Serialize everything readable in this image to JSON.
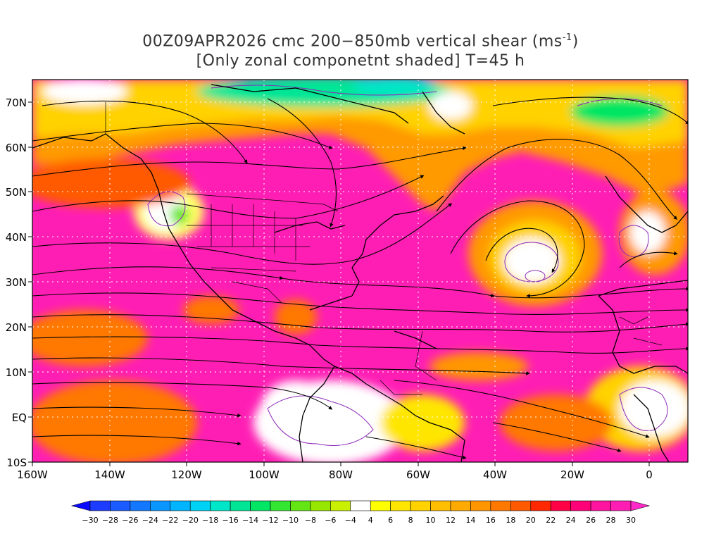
{
  "title": {
    "line1": "00Z09APR2026 cmc 200−850mb vertical shear (ms",
    "line1_sup": "-1",
    "line1_end": ")",
    "line2": "[Only zonal componetnt shaded] T=45 h"
  },
  "map": {
    "lon_range": [
      -160,
      10
    ],
    "lat_range": [
      -10,
      75
    ],
    "lat_labels": [
      "70N",
      "60N",
      "50N",
      "40N",
      "30N",
      "20N",
      "10N",
      "EQ",
      "10S"
    ],
    "lon_labels": [
      "160W",
      "140W",
      "120W",
      "100W",
      "80W",
      "60W",
      "40W",
      "20W",
      "0"
    ]
  },
  "colorbar": {
    "labels": [
      "−30",
      "−28",
      "−26",
      "−24",
      "−22",
      "−20",
      "−18",
      "−16",
      "−14",
      "−12",
      "−10",
      "−8",
      "−6",
      "−4",
      "4",
      "6",
      "8",
      "10",
      "12",
      "14",
      "16",
      "18",
      "20",
      "22",
      "24",
      "26",
      "28",
      "30"
    ],
    "colors": [
      "#0a0aff",
      "#1e3cff",
      "#1a5cff",
      "#1478ff",
      "#0a96ff",
      "#00b4ff",
      "#00d2f5",
      "#00e6c8",
      "#00e696",
      "#00e664",
      "#32e632",
      "#64e614",
      "#96e600",
      "#c8f000",
      "#ffffff",
      "#ffff00",
      "#ffe600",
      "#ffd200",
      "#ffbe00",
      "#ffaa00",
      "#ff9600",
      "#ff7800",
      "#ff5a00",
      "#ff2800",
      "#ff0046",
      "#ff0078",
      "#ff14a0",
      "#ff1eb4",
      "#ff28c8"
    ]
  },
  "colors": {
    "shear_max": "#ff1eb4",
    "contour": "#8e2ab8",
    "coast": "#000000",
    "grid": "#ffffff"
  }
}
